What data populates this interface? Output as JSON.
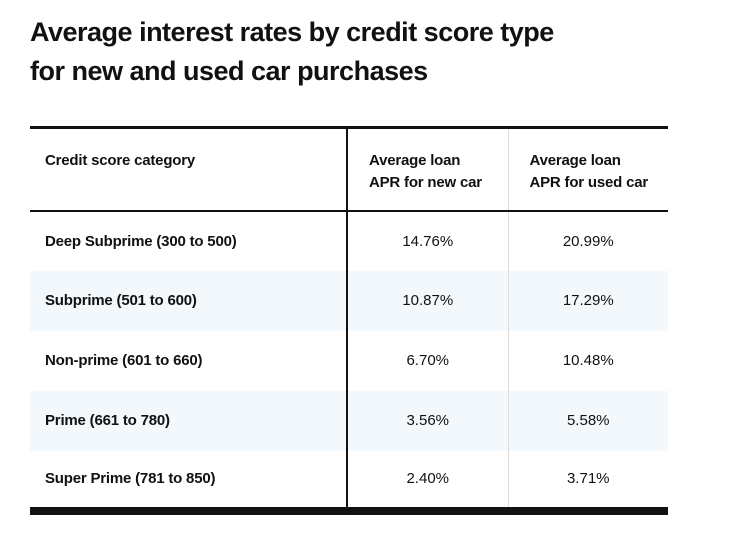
{
  "colors": {
    "ink": "#111111",
    "row_alt": "#f2f8fc",
    "divider": "#dddddd"
  },
  "page": {
    "title": "Average interest rates by credit score type\nfor new and used car purchases"
  },
  "table": {
    "headers": {
      "category": "Credit score category",
      "new_car": "Average loan\nAPR for new car",
      "used_car": "Average loan\nAPR for used car"
    },
    "rows": [
      {
        "category": "Deep Subprime (300 to 500)",
        "new_apr": "14.76%",
        "used_apr": "20.99%"
      },
      {
        "category": "Subprime (501 to 600)",
        "new_apr": "10.87%",
        "used_apr": "17.29%"
      },
      {
        "category": "Non-prime (601 to 660)",
        "new_apr": "6.70%",
        "used_apr": "10.48%"
      },
      {
        "category": "Prime (661 to 780)",
        "new_apr": "3.56%",
        "used_apr": "5.58%"
      },
      {
        "category": "Super Prime (781 to 850)",
        "new_apr": "2.40%",
        "used_apr": "3.71%"
      }
    ]
  },
  "chart_data": {
    "type": "table",
    "title": "Average interest rates by credit score type for new and used car purchases",
    "columns": [
      "Credit score category",
      "Average loan APR for new car",
      "Average loan APR for used car"
    ],
    "categories": [
      "Deep Subprime (300 to 500)",
      "Subprime (501 to 600)",
      "Non-prime (601 to 660)",
      "Prime (661 to 780)",
      "Super Prime (781 to 850)"
    ],
    "series": [
      {
        "name": "Average loan APR for new car",
        "values": [
          14.76,
          10.87,
          6.7,
          3.56,
          2.4
        ],
        "unit": "%"
      },
      {
        "name": "Average loan APR for used car",
        "values": [
          20.99,
          17.29,
          10.48,
          5.58,
          3.71
        ],
        "unit": "%"
      }
    ]
  }
}
